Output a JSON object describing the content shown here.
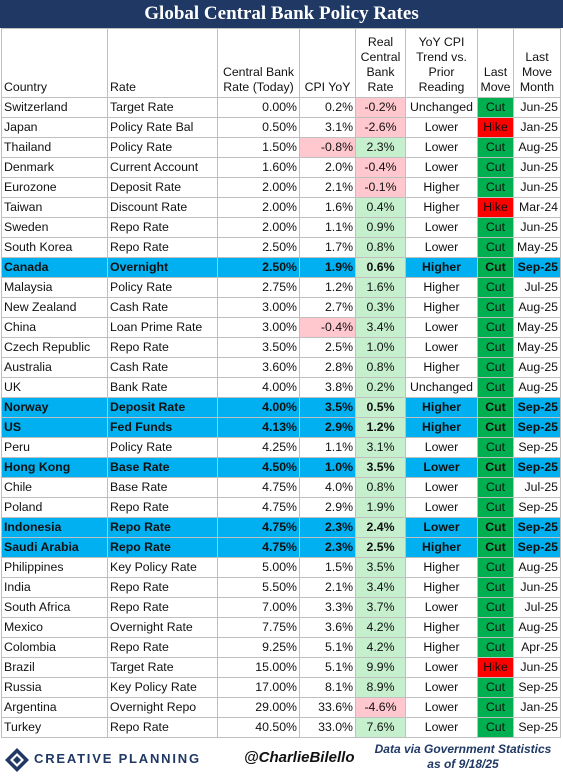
{
  "title": "Global Central Bank Policy Rates",
  "headers": [
    "Country",
    "Rate",
    "Central Bank Rate (Today)",
    "CPI YoY",
    "Real Central Bank Rate",
    "YoY CPI Trend vs. Prior Reading",
    "Last Move",
    "Last Move Month"
  ],
  "colors": {
    "title_bg": "#1f3864",
    "highlight_row": "#00b0f0",
    "cut": "#00b050",
    "hike": "#ff0000",
    "negative_fill": "#ffc7ce",
    "negative_text": "#9c0006",
    "positive_fill": "#c6efce",
    "positive_text": "#006100",
    "brand": "#1f3864"
  },
  "chart_data": {
    "type": "table",
    "title": "Global Central Bank Policy Rates",
    "columns": [
      "Country",
      "Rate",
      "Central Bank Rate (Today)",
      "CPI YoY",
      "Real Central Bank Rate",
      "YoY CPI Trend vs. Prior Reading",
      "Last Move",
      "Last Move Month"
    ],
    "rows": [
      {
        "country": "Switzerland",
        "rate": "Target Rate",
        "cb": "0.00%",
        "cpi": "0.2%",
        "real": "-0.2%",
        "trend": "Unchanged",
        "move": "Cut",
        "month": "Jun-25",
        "highlight": false
      },
      {
        "country": "Japan",
        "rate": "Policy Rate Bal",
        "cb": "0.50%",
        "cpi": "3.1%",
        "real": "-2.6%",
        "trend": "Lower",
        "move": "Hike",
        "month": "Jan-25",
        "highlight": false
      },
      {
        "country": "Thailand",
        "rate": "Policy Rate",
        "cb": "1.50%",
        "cpi": "-0.8%",
        "real": "2.3%",
        "trend": "Lower",
        "move": "Cut",
        "month": "Aug-25",
        "highlight": false
      },
      {
        "country": "Denmark",
        "rate": "Current Account",
        "cb": "1.60%",
        "cpi": "2.0%",
        "real": "-0.4%",
        "trend": "Lower",
        "move": "Cut",
        "month": "Jun-25",
        "highlight": false
      },
      {
        "country": "Eurozone",
        "rate": "Deposit Rate",
        "cb": "2.00%",
        "cpi": "2.1%",
        "real": "-0.1%",
        "trend": "Higher",
        "move": "Cut",
        "month": "Jun-25",
        "highlight": false
      },
      {
        "country": "Taiwan",
        "rate": "Discount Rate",
        "cb": "2.00%",
        "cpi": "1.6%",
        "real": "0.4%",
        "trend": "Higher",
        "move": "Hike",
        "month": "Mar-24",
        "highlight": false
      },
      {
        "country": "Sweden",
        "rate": "Repo Rate",
        "cb": "2.00%",
        "cpi": "1.1%",
        "real": "0.9%",
        "trend": "Lower",
        "move": "Cut",
        "month": "Jun-25",
        "highlight": false
      },
      {
        "country": "South Korea",
        "rate": "Repo Rate",
        "cb": "2.50%",
        "cpi": "1.7%",
        "real": "0.8%",
        "trend": "Lower",
        "move": "Cut",
        "month": "May-25",
        "highlight": false
      },
      {
        "country": "Canada",
        "rate": "Overnight",
        "cb": "2.50%",
        "cpi": "1.9%",
        "real": "0.6%",
        "trend": "Higher",
        "move": "Cut",
        "month": "Sep-25",
        "highlight": true
      },
      {
        "country": "Malaysia",
        "rate": "Policy Rate",
        "cb": "2.75%",
        "cpi": "1.2%",
        "real": "1.6%",
        "trend": "Higher",
        "move": "Cut",
        "month": "Jul-25",
        "highlight": false
      },
      {
        "country": "New Zealand",
        "rate": "Cash Rate",
        "cb": "3.00%",
        "cpi": "2.7%",
        "real": "0.3%",
        "trend": "Higher",
        "move": "Cut",
        "month": "Aug-25",
        "highlight": false
      },
      {
        "country": "China",
        "rate": "Loan Prime Rate",
        "cb": "3.00%",
        "cpi": "-0.4%",
        "real": "3.4%",
        "trend": "Lower",
        "move": "Cut",
        "month": "May-25",
        "highlight": false
      },
      {
        "country": "Czech Republic",
        "rate": "Repo Rate",
        "cb": "3.50%",
        "cpi": "2.5%",
        "real": "1.0%",
        "trend": "Lower",
        "move": "Cut",
        "month": "May-25",
        "highlight": false
      },
      {
        "country": "Australia",
        "rate": "Cash Rate",
        "cb": "3.60%",
        "cpi": "2.8%",
        "real": "0.8%",
        "trend": "Higher",
        "move": "Cut",
        "month": "Aug-25",
        "highlight": false
      },
      {
        "country": "UK",
        "rate": "Bank Rate",
        "cb": "4.00%",
        "cpi": "3.8%",
        "real": "0.2%",
        "trend": "Unchanged",
        "move": "Cut",
        "month": "Aug-25",
        "highlight": false
      },
      {
        "country": "Norway",
        "rate": "Deposit Rate",
        "cb": "4.00%",
        "cpi": "3.5%",
        "real": "0.5%",
        "trend": "Higher",
        "move": "Cut",
        "month": "Sep-25",
        "highlight": true
      },
      {
        "country": "US",
        "rate": "Fed Funds",
        "cb": "4.13%",
        "cpi": "2.9%",
        "real": "1.2%",
        "trend": "Higher",
        "move": "Cut",
        "month": "Sep-25",
        "highlight": true
      },
      {
        "country": "Peru",
        "rate": "Policy Rate",
        "cb": "4.25%",
        "cpi": "1.1%",
        "real": "3.1%",
        "trend": "Lower",
        "move": "Cut",
        "month": "Sep-25",
        "highlight": false
      },
      {
        "country": "Hong Kong",
        "rate": "Base Rate",
        "cb": "4.50%",
        "cpi": "1.0%",
        "real": "3.5%",
        "trend": "Lower",
        "move": "Cut",
        "month": "Sep-25",
        "highlight": true
      },
      {
        "country": "Chile",
        "rate": "Base Rate",
        "cb": "4.75%",
        "cpi": "4.0%",
        "real": "0.8%",
        "trend": "Lower",
        "move": "Cut",
        "month": "Jul-25",
        "highlight": false
      },
      {
        "country": "Poland",
        "rate": "Repo Rate",
        "cb": "4.75%",
        "cpi": "2.9%",
        "real": "1.9%",
        "trend": "Lower",
        "move": "Cut",
        "month": "Sep-25",
        "highlight": false
      },
      {
        "country": "Indonesia",
        "rate": "Repo Rate",
        "cb": "4.75%",
        "cpi": "2.3%",
        "real": "2.4%",
        "trend": "Lower",
        "move": "Cut",
        "month": "Sep-25",
        "highlight": true
      },
      {
        "country": "Saudi Arabia",
        "rate": "Repo Rate",
        "cb": "4.75%",
        "cpi": "2.3%",
        "real": "2.5%",
        "trend": "Higher",
        "move": "Cut",
        "month": "Sep-25",
        "highlight": true
      },
      {
        "country": "Philippines",
        "rate": "Key Policy Rate",
        "cb": "5.00%",
        "cpi": "1.5%",
        "real": "3.5%",
        "trend": "Higher",
        "move": "Cut",
        "month": "Aug-25",
        "highlight": false
      },
      {
        "country": "India",
        "rate": "Repo Rate",
        "cb": "5.50%",
        "cpi": "2.1%",
        "real": "3.4%",
        "trend": "Higher",
        "move": "Cut",
        "month": "Jun-25",
        "highlight": false
      },
      {
        "country": "South Africa",
        "rate": "Repo Rate",
        "cb": "7.00%",
        "cpi": "3.3%",
        "real": "3.7%",
        "trend": "Lower",
        "move": "Cut",
        "month": "Jul-25",
        "highlight": false
      },
      {
        "country": "Mexico",
        "rate": "Overnight Rate",
        "cb": "7.75%",
        "cpi": "3.6%",
        "real": "4.2%",
        "trend": "Higher",
        "move": "Cut",
        "month": "Aug-25",
        "highlight": false
      },
      {
        "country": "Colombia",
        "rate": "Repo Rate",
        "cb": "9.25%",
        "cpi": "5.1%",
        "real": "4.2%",
        "trend": "Higher",
        "move": "Cut",
        "month": "Apr-25",
        "highlight": false
      },
      {
        "country": "Brazil",
        "rate": "Target Rate",
        "cb": "15.00%",
        "cpi": "5.1%",
        "real": "9.9%",
        "trend": "Lower",
        "move": "Hike",
        "month": "Jun-25",
        "highlight": false
      },
      {
        "country": "Russia",
        "rate": "Key Policy Rate",
        "cb": "17.00%",
        "cpi": "8.1%",
        "real": "8.9%",
        "trend": "Lower",
        "move": "Cut",
        "month": "Sep-25",
        "highlight": false
      },
      {
        "country": "Argentina",
        "rate": "Overnight Repo",
        "cb": "29.00%",
        "cpi": "33.6%",
        "real": "-4.6%",
        "trend": "Lower",
        "move": "Cut",
        "month": "Jan-25",
        "highlight": false
      },
      {
        "country": "Turkey",
        "rate": "Repo Rate",
        "cb": "40.50%",
        "cpi": "33.0%",
        "real": "7.6%",
        "trend": "Lower",
        "move": "Cut",
        "month": "Sep-25",
        "highlight": false
      }
    ]
  },
  "footer": {
    "brand": "CREATIVE PLANNING",
    "handle": "@CharlieBilello",
    "source_line1": "Data via Government Statistics",
    "source_line2": "as of 9/18/25"
  }
}
